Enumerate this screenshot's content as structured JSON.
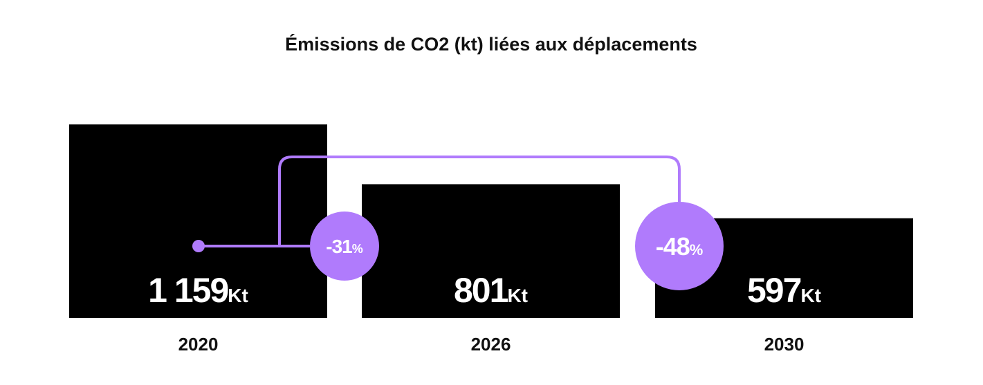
{
  "colors": {
    "bar": "#000000",
    "accent": "#b07bfc",
    "text": "#111111",
    "value_text": "#ffffff"
  },
  "chart_data": {
    "type": "bar",
    "title": "Émissions de CO2 (kt) liées aux déplacements",
    "xlabel": "",
    "ylabel": "",
    "categories": [
      "2020",
      "2026",
      "2030"
    ],
    "values": [
      1159,
      801,
      597
    ],
    "value_labels": [
      "1 159",
      "801",
      "597"
    ],
    "unit": "Kt",
    "grid": false,
    "annotations": [
      {
        "label": "-31",
        "suffix": "%",
        "from": "2020",
        "to": "2026"
      },
      {
        "label": "-48",
        "suffix": "%",
        "from": "2020",
        "to": "2030"
      }
    ]
  }
}
